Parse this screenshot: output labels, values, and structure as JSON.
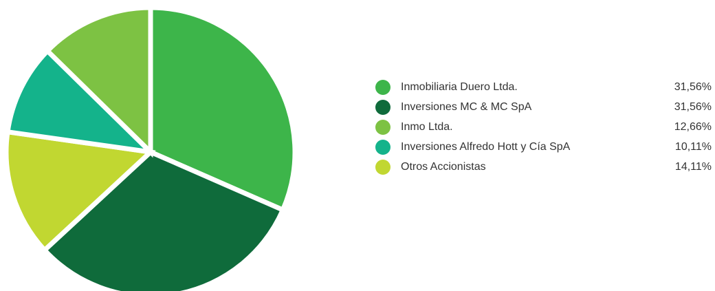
{
  "chart_data": {
    "type": "pie",
    "categories": [
      "Inmobiliaria Duero Ltda.",
      "Inversiones MC & MC SpA",
      "Inmo Ltda.",
      "Inversiones Alfredo Hott y Cía SpA",
      "Otros Accionistas"
    ],
    "values": [
      31.56,
      31.56,
      12.66,
      10.11,
      14.11
    ],
    "value_labels": [
      "31,56%",
      "31,56%",
      "12,66%",
      "10,11%",
      "14,11%"
    ],
    "colors": [
      "#3db54a",
      "#0f6b3b",
      "#7dc243",
      "#14b38b",
      "#c1d731"
    ]
  }
}
